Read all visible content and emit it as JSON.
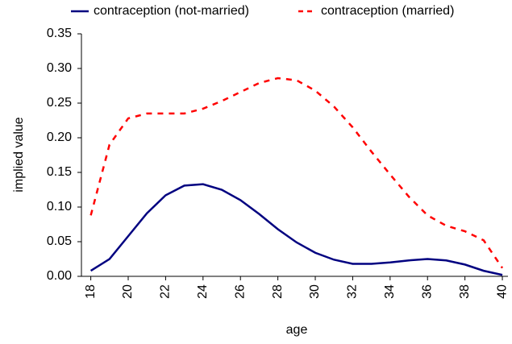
{
  "chart_data": {
    "type": "line",
    "x_label": "age",
    "y_label": "implied value",
    "x": [
      18,
      19,
      20,
      21,
      22,
      23,
      24,
      25,
      26,
      27,
      28,
      29,
      30,
      31,
      32,
      33,
      34,
      35,
      36,
      37,
      38,
      39,
      40
    ],
    "series": [
      {
        "name": "contraception (not-married)",
        "color": "#000080",
        "dash": false,
        "values": [
          0.008,
          0.025,
          0.058,
          0.091,
          0.117,
          0.131,
          0.133,
          0.125,
          0.11,
          0.09,
          0.068,
          0.049,
          0.034,
          0.024,
          0.018,
          0.018,
          0.02,
          0.023,
          0.025,
          0.023,
          0.017,
          0.008,
          0.002
        ]
      },
      {
        "name": "contraception (married)",
        "color": "#ff0000",
        "dash": true,
        "values": [
          0.088,
          0.19,
          0.228,
          0.235,
          0.235,
          0.235,
          0.242,
          0.253,
          0.266,
          0.279,
          0.286,
          0.283,
          0.268,
          0.245,
          0.215,
          0.18,
          0.147,
          0.115,
          0.088,
          0.073,
          0.065,
          0.052,
          0.012
        ]
      }
    ],
    "xlim": [
      17.5,
      40.3
    ],
    "xticks": [
      18,
      20,
      22,
      24,
      26,
      28,
      30,
      32,
      34,
      36,
      38,
      40
    ],
    "ylim": [
      0,
      0.35
    ],
    "yticks": [
      {
        "value": 0,
        "label": "0.00"
      },
      {
        "value": 0.05,
        "label": "0.05"
      },
      {
        "value": 0.1,
        "label": "0.10"
      },
      {
        "value": 0.15,
        "label": "0.15"
      },
      {
        "value": 0.2,
        "label": "0.20"
      },
      {
        "value": 0.25,
        "label": "0.25"
      },
      {
        "value": 0.3,
        "label": "0.30"
      },
      {
        "value": 0.35,
        "label": "0.35"
      }
    ],
    "legend": "top"
  }
}
